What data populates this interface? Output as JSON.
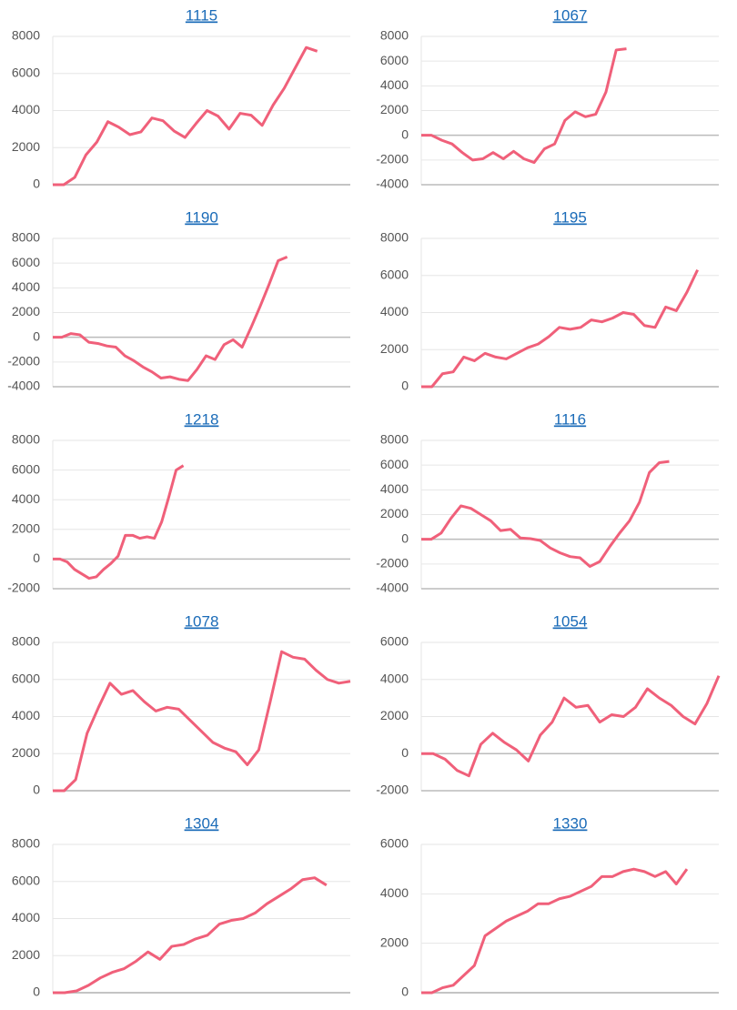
{
  "chart_data": [
    {
      "type": "line",
      "title": "1115",
      "color": "#f0607a",
      "ylim": [
        0,
        8000
      ],
      "yticks": [
        0,
        2000,
        4000,
        6000,
        8000
      ],
      "xlim": [
        0,
        27
      ],
      "values": [
        0,
        0,
        400,
        1600,
        2300,
        3400,
        3100,
        2700,
        2850,
        3600,
        3450,
        2900,
        2550,
        3300,
        4000,
        3700,
        3000,
        3850,
        3750,
        3200,
        4300,
        5200,
        6300,
        7400,
        7200
      ]
    },
    {
      "type": "line",
      "title": "1067",
      "color": "#f0607a",
      "ylim": [
        -4000,
        8000
      ],
      "yticks": [
        -4000,
        -2000,
        0,
        2000,
        4000,
        6000,
        8000
      ],
      "xlim": [
        0,
        29
      ],
      "values": [
        0,
        0,
        -400,
        -700,
        -1400,
        -2000,
        -1900,
        -1400,
        -1900,
        -1300,
        -1900,
        -2200,
        -1100,
        -700,
        1200,
        1900,
        1500,
        1700,
        3500,
        6900,
        7000
      ]
    },
    {
      "type": "line",
      "title": "1190",
      "color": "#f0607a",
      "ylim": [
        -4000,
        8000
      ],
      "yticks": [
        -4000,
        -2000,
        0,
        2000,
        4000,
        6000,
        8000
      ],
      "xlim": [
        0,
        33
      ],
      "values": [
        0,
        0,
        300,
        200,
        -400,
        -500,
        -700,
        -800,
        -1500,
        -1900,
        -2400,
        -2800,
        -3300,
        -3200,
        -3400,
        -3500,
        -2600,
        -1500,
        -1800,
        -600,
        -200,
        -800,
        800,
        2500,
        4300,
        6200,
        6500
      ]
    },
    {
      "type": "line",
      "title": "1195",
      "color": "#f0607a",
      "ylim": [
        0,
        8000
      ],
      "yticks": [
        0,
        2000,
        4000,
        6000,
        8000
      ],
      "xlim": [
        0,
        28
      ],
      "values": [
        0,
        0,
        700,
        800,
        1600,
        1400,
        1800,
        1600,
        1500,
        1800,
        2100,
        2300,
        2700,
        3200,
        3100,
        3200,
        3600,
        3500,
        3700,
        4000,
        3900,
        3300,
        3200,
        4300,
        4100,
        5100,
        6300
      ]
    },
    {
      "type": "line",
      "title": "1218",
      "color": "#f0607a",
      "ylim": [
        -2000,
        8000
      ],
      "yticks": [
        -2000,
        0,
        2000,
        4000,
        6000,
        8000
      ],
      "xlim": [
        0,
        41
      ],
      "values": [
        0,
        0,
        -200,
        -700,
        -1000,
        -1300,
        -1200,
        -700,
        -300,
        200,
        1600,
        1600,
        1400,
        1500,
        1400,
        2500,
        4200,
        6000,
        6300
      ]
    },
    {
      "type": "line",
      "title": "1116",
      "color": "#f0607a",
      "ylim": [
        -4000,
        8000
      ],
      "yticks": [
        -4000,
        -2000,
        0,
        2000,
        4000,
        6000,
        8000
      ],
      "xlim": [
        0,
        30
      ],
      "values": [
        0,
        0,
        500,
        1700,
        2700,
        2500,
        2000,
        1500,
        700,
        800,
        100,
        50,
        -100,
        -700,
        -1100,
        -1400,
        -1500,
        -2200,
        -1800,
        -600,
        500,
        1500,
        3000,
        5400,
        6200,
        6300
      ]
    },
    {
      "type": "line",
      "title": "1078",
      "color": "#f0607a",
      "ylim": [
        0,
        8000
      ],
      "yticks": [
        0,
        2000,
        4000,
        6000,
        8000
      ],
      "xlim": [
        0,
        26
      ],
      "values": [
        0,
        0,
        600,
        3100,
        4500,
        5800,
        5200,
        5400,
        4800,
        4300,
        4500,
        4400,
        3800,
        3200,
        2600,
        2300,
        2100,
        1400,
        2200,
        4800,
        7500,
        7200,
        7100,
        6500,
        6000,
        5800,
        5900
      ]
    },
    {
      "type": "line",
      "title": "1054",
      "color": "#f0607a",
      "ylim": [
        -2000,
        6000
      ],
      "yticks": [
        -2000,
        0,
        2000,
        4000,
        6000
      ],
      "xlim": [
        0,
        25
      ],
      "values": [
        0,
        0,
        -300,
        -900,
        -1200,
        500,
        1100,
        600,
        200,
        -400,
        1000,
        1700,
        3000,
        2500,
        2600,
        1700,
        2100,
        2000,
        2500,
        3500,
        3000,
        2600,
        2000,
        1600,
        2700,
        4200
      ]
    },
    {
      "type": "line",
      "title": "1304",
      "color": "#f0607a",
      "ylim": [
        0,
        8000
      ],
      "yticks": [
        0,
        2000,
        4000,
        6000,
        8000
      ],
      "xlim": [
        0,
        25
      ],
      "values": [
        0,
        0,
        100,
        400,
        800,
        1100,
        1300,
        1700,
        2200,
        1800,
        2500,
        2600,
        2900,
        3100,
        3700,
        3900,
        4000,
        4300,
        4800,
        5200,
        5600,
        6100,
        6200,
        5800
      ]
    },
    {
      "type": "line",
      "title": "1330",
      "color": "#f0607a",
      "ylim": [
        0,
        6000
      ],
      "yticks": [
        0,
        2000,
        4000,
        6000
      ],
      "xlim": [
        0,
        28
      ],
      "values": [
        0,
        0,
        200,
        300,
        700,
        1100,
        2300,
        2600,
        2900,
        3100,
        3300,
        3600,
        3600,
        3800,
        3900,
        4100,
        4300,
        4700,
        4700,
        4900,
        5000,
        4900,
        4700,
        4900,
        4400,
        5000
      ]
    }
  ]
}
